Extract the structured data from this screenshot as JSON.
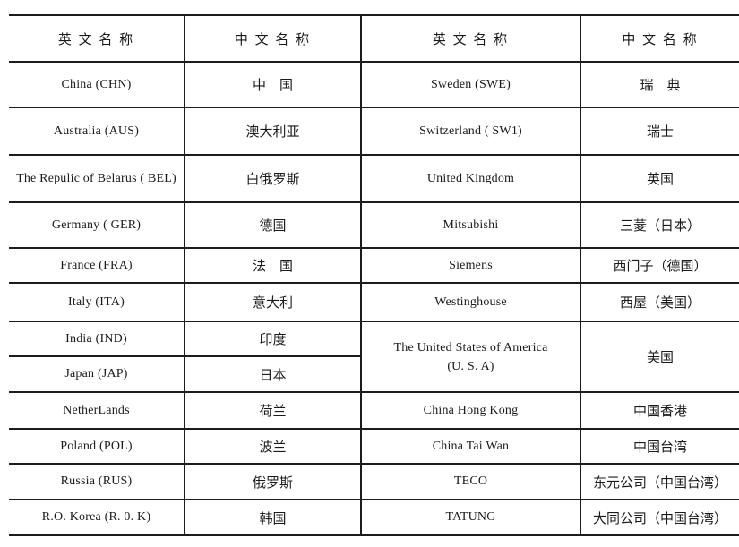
{
  "colors": {
    "background": "#ffffff",
    "border": "#1c1c1c",
    "text": "#1a1a1a"
  },
  "table": {
    "headers": [
      {
        "label": "英 文 名 称"
      },
      {
        "label": "中 文 名 称"
      },
      {
        "label": "英 文 名 称"
      },
      {
        "label": "中 文 名 称"
      }
    ],
    "rows": [
      {
        "en_a": "China (CHN)",
        "zh_a": "中　国",
        "en_b": "Sweden (SWE)",
        "zh_b": "瑞　典"
      },
      {
        "en_a": "Australia (AUS)",
        "zh_a": "澳大利亚",
        "en_b": "Switzerland ( SW1)",
        "zh_b": "瑞士"
      },
      {
        "en_a": "The Repulic of Belarus ( BEL)",
        "zh_a": "白俄罗斯",
        "en_b": "United Kingdom",
        "zh_b": "英国"
      },
      {
        "en_a": "Germany ( GER)",
        "zh_a": "德国",
        "en_b": "Mitsubishi",
        "zh_b": "三菱（日本）"
      },
      {
        "en_a": "France (FRA)",
        "zh_a": "法　国",
        "en_b": "Siemens",
        "zh_b": "西门子（德国）"
      },
      {
        "en_a": "Italy (ITA)",
        "zh_a": "意大利",
        "en_b": "Westinghouse",
        "zh_b": "西屋（美国）"
      },
      {
        "en_a": "India (IND)",
        "zh_a": "印度",
        "en_b_line1": "The United States of America",
        "en_b_line2": "(U. S. A)",
        "zh_b": "美国"
      },
      {
        "en_a": "Japan (JAP)",
        "zh_a": "日本"
      },
      {
        "en_a": "NetherLands",
        "zh_a": "荷兰",
        "en_b": "China Hong Kong",
        "zh_b": "中国香港"
      },
      {
        "en_a": "Poland (POL)",
        "zh_a": "波兰",
        "en_b": "China Tai Wan",
        "zh_b": "中国台湾"
      },
      {
        "en_a": "Russia (RUS)",
        "zh_a": "俄罗斯",
        "en_b": "TECO",
        "zh_b": "东元公司（中国台湾）"
      },
      {
        "en_a": "R.O. Korea (R. 0. K)",
        "zh_a": "韩国",
        "en_b": "TATUNG",
        "zh_b": "大同公司（中国台湾）"
      }
    ]
  }
}
